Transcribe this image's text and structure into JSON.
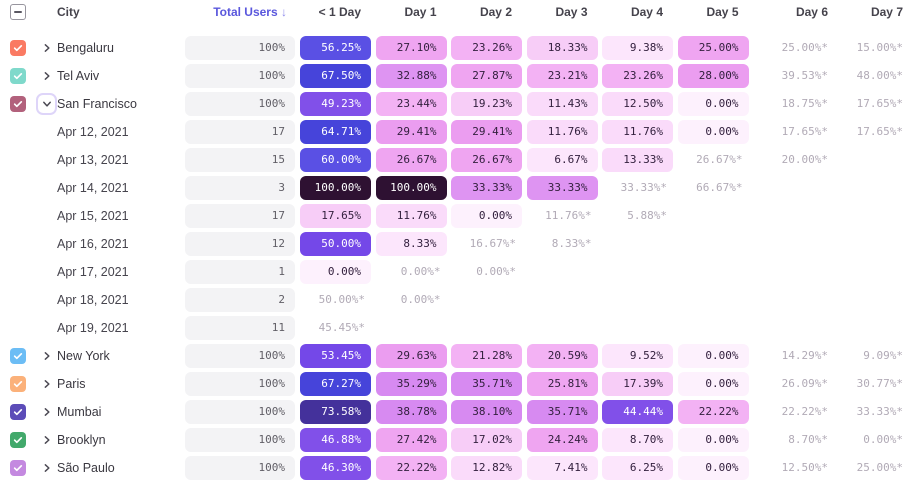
{
  "header": {
    "columns": [
      "City",
      "Total Users",
      "< 1 Day",
      "Day 1",
      "Day 2",
      "Day 3",
      "Day 4",
      "Day 5",
      "Day 6",
      "Day 7"
    ],
    "sort_arrow": "↓",
    "select_all_state": "indeterminate"
  },
  "color_scale": [
    {
      "min": 80,
      "bg": "#2e1132",
      "fg": "#ffffff"
    },
    {
      "min": 70,
      "bg": "#44319b",
      "fg": "#ffffff"
    },
    {
      "min": 63,
      "bg": "#4644da",
      "fg": "#ffffff"
    },
    {
      "min": 55,
      "bg": "#5a50e4",
      "fg": "#ffffff"
    },
    {
      "min": 50,
      "bg": "#7448e8",
      "fg": "#ffffff"
    },
    {
      "min": 43,
      "bg": "#8150e9",
      "fg": "#ffffff"
    },
    {
      "min": 34,
      "bg": "#d78af1",
      "fg": "#33203e"
    },
    {
      "min": 31,
      "bg": "#de94f2",
      "fg": "#33203e"
    },
    {
      "min": 28,
      "bg": "#eb9df0",
      "fg": "#33203e"
    },
    {
      "min": 24,
      "bg": "#efa5f1",
      "fg": "#33203e"
    },
    {
      "min": 20,
      "bg": "#f3b2f4",
      "fg": "#33203e"
    },
    {
      "min": 16,
      "bg": "#f7cdf7",
      "fg": "#33203e"
    },
    {
      "min": 11,
      "bg": "#fadbfa",
      "fg": "#33203e"
    },
    {
      "min": 5,
      "bg": "#fce6fc",
      "fg": "#33203e"
    },
    {
      "min": 0,
      "bg": "#fdf1fd",
      "fg": "#33203e"
    }
  ],
  "rows": [
    {
      "type": "city",
      "label": "Bengaluru",
      "checkbox_color": "#fa7a63",
      "expandable": true,
      "expanded": false,
      "total": "100%",
      "cells": [
        {
          "t": "56.25%",
          "v": 56.25,
          "k": "pill"
        },
        {
          "t": "27.10%",
          "v": 27.1,
          "k": "pill"
        },
        {
          "t": "23.26%",
          "v": 23.26,
          "k": "pill"
        },
        {
          "t": "18.33%",
          "v": 18.33,
          "k": "pill"
        },
        {
          "t": "9.38%",
          "v": 9.38,
          "k": "pill"
        },
        {
          "t": "25.00%",
          "v": 25.0,
          "k": "pill"
        },
        {
          "t": "25.00%*",
          "k": "plain"
        },
        {
          "t": "15.00%*",
          "k": "plain"
        }
      ]
    },
    {
      "type": "city",
      "label": "Tel Aviv",
      "checkbox_color": "#7fd9cb",
      "expandable": true,
      "expanded": false,
      "total": "100%",
      "cells": [
        {
          "t": "67.50%",
          "v": 67.5,
          "k": "pill"
        },
        {
          "t": "32.88%",
          "v": 32.88,
          "k": "pill"
        },
        {
          "t": "27.87%",
          "v": 27.87,
          "k": "pill"
        },
        {
          "t": "23.21%",
          "v": 23.21,
          "k": "pill"
        },
        {
          "t": "23.26%",
          "v": 23.26,
          "k": "pill"
        },
        {
          "t": "28.00%",
          "v": 28.0,
          "k": "pill"
        },
        {
          "t": "39.53%*",
          "k": "plain"
        },
        {
          "t": "48.00%*",
          "k": "plain"
        }
      ]
    },
    {
      "type": "city",
      "label": "San Francisco",
      "checkbox_color": "#b2617c",
      "expandable": true,
      "expanded": true,
      "total": "100%",
      "cells": [
        {
          "t": "49.23%",
          "v": 49.23,
          "k": "pill"
        },
        {
          "t": "23.44%",
          "v": 23.44,
          "k": "pill"
        },
        {
          "t": "19.23%",
          "v": 19.23,
          "k": "pill"
        },
        {
          "t": "11.43%",
          "v": 11.43,
          "k": "pill"
        },
        {
          "t": "12.50%",
          "v": 12.5,
          "k": "pill"
        },
        {
          "t": "0.00%",
          "v": 0,
          "k": "pill"
        },
        {
          "t": "18.75%*",
          "k": "plain"
        },
        {
          "t": "17.65%*",
          "k": "plain"
        }
      ]
    },
    {
      "type": "date",
      "label": "Apr 12, 2021",
      "total": "17",
      "cells": [
        {
          "t": "64.71%",
          "v": 64.71,
          "k": "pill"
        },
        {
          "t": "29.41%",
          "v": 29.41,
          "k": "pill"
        },
        {
          "t": "29.41%",
          "v": 29.41,
          "k": "pill"
        },
        {
          "t": "11.76%",
          "v": 11.76,
          "k": "pill"
        },
        {
          "t": "11.76%",
          "v": 11.76,
          "k": "pill"
        },
        {
          "t": "0.00%",
          "v": 0,
          "k": "pill"
        },
        {
          "t": "17.65%*",
          "k": "plain"
        },
        {
          "t": "17.65%*",
          "k": "plain"
        }
      ]
    },
    {
      "type": "date",
      "label": "Apr 13, 2021",
      "total": "15",
      "cells": [
        {
          "t": "60.00%",
          "v": 60.0,
          "k": "pill"
        },
        {
          "t": "26.67%",
          "v": 26.67,
          "k": "pill"
        },
        {
          "t": "26.67%",
          "v": 26.67,
          "k": "pill"
        },
        {
          "t": "6.67%",
          "v": 6.67,
          "k": "pill"
        },
        {
          "t": "13.33%",
          "v": 13.33,
          "k": "pill"
        },
        {
          "t": "26.67%*",
          "k": "plain"
        },
        {
          "t": "20.00%*",
          "k": "plain"
        },
        null
      ]
    },
    {
      "type": "date",
      "label": "Apr 14, 2021",
      "total": "3",
      "cells": [
        {
          "t": "100.00%",
          "v": 100,
          "k": "pill"
        },
        {
          "t": "100.00%",
          "v": 100,
          "k": "pill"
        },
        {
          "t": "33.33%",
          "v": 33.33,
          "k": "pill"
        },
        {
          "t": "33.33%",
          "v": 33.33,
          "k": "pill"
        },
        {
          "t": "33.33%*",
          "k": "plain"
        },
        {
          "t": "66.67%*",
          "k": "plain"
        },
        null,
        null
      ]
    },
    {
      "type": "date",
      "label": "Apr 15, 2021",
      "total": "17",
      "cells": [
        {
          "t": "17.65%",
          "v": 17.65,
          "k": "pill"
        },
        {
          "t": "11.76%",
          "v": 11.76,
          "k": "pill"
        },
        {
          "t": "0.00%",
          "v": 0,
          "k": "pill"
        },
        {
          "t": "11.76%*",
          "k": "plain"
        },
        {
          "t": "5.88%*",
          "k": "plain"
        },
        null,
        null,
        null
      ]
    },
    {
      "type": "date",
      "label": "Apr 16, 2021",
      "total": "12",
      "cells": [
        {
          "t": "50.00%",
          "v": 50.0,
          "k": "pill"
        },
        {
          "t": "8.33%",
          "v": 8.33,
          "k": "pill"
        },
        {
          "t": "16.67%*",
          "k": "plain"
        },
        {
          "t": "8.33%*",
          "k": "plain"
        },
        null,
        null,
        null,
        null
      ]
    },
    {
      "type": "date",
      "label": "Apr 17, 2021",
      "total": "1",
      "cells": [
        {
          "t": "0.00%",
          "v": 0,
          "k": "pill"
        },
        {
          "t": "0.00%*",
          "k": "plain"
        },
        {
          "t": "0.00%*",
          "k": "plain"
        },
        null,
        null,
        null,
        null,
        null
      ]
    },
    {
      "type": "date",
      "label": "Apr 18, 2021",
      "total": "2",
      "cells": [
        {
          "t": "50.00%*",
          "k": "plain"
        },
        {
          "t": "0.00%*",
          "k": "plain"
        },
        null,
        null,
        null,
        null,
        null,
        null
      ]
    },
    {
      "type": "date",
      "label": "Apr 19, 2021",
      "total": "11",
      "cells": [
        {
          "t": "45.45%*",
          "k": "plain"
        },
        null,
        null,
        null,
        null,
        null,
        null,
        null
      ]
    },
    {
      "type": "city",
      "label": "New York",
      "checkbox_color": "#6cbdf5",
      "expandable": true,
      "expanded": false,
      "total": "100%",
      "cells": [
        {
          "t": "53.45%",
          "v": 53.45,
          "k": "pill"
        },
        {
          "t": "29.63%",
          "v": 29.63,
          "k": "pill"
        },
        {
          "t": "21.28%",
          "v": 21.28,
          "k": "pill"
        },
        {
          "t": "20.59%",
          "v": 20.59,
          "k": "pill"
        },
        {
          "t": "9.52%",
          "v": 9.52,
          "k": "pill"
        },
        {
          "t": "0.00%",
          "v": 0,
          "k": "pill"
        },
        {
          "t": "14.29%*",
          "k": "plain"
        },
        {
          "t": "9.09%*",
          "k": "plain"
        }
      ]
    },
    {
      "type": "city",
      "label": "Paris",
      "checkbox_color": "#fbb17a",
      "expandable": true,
      "expanded": false,
      "total": "100%",
      "cells": [
        {
          "t": "67.27%",
          "v": 67.27,
          "k": "pill"
        },
        {
          "t": "35.29%",
          "v": 35.29,
          "k": "pill"
        },
        {
          "t": "35.71%",
          "v": 35.71,
          "k": "pill"
        },
        {
          "t": "25.81%",
          "v": 25.81,
          "k": "pill"
        },
        {
          "t": "17.39%",
          "v": 17.39,
          "k": "pill"
        },
        {
          "t": "0.00%",
          "v": 0,
          "k": "pill"
        },
        {
          "t": "26.09%*",
          "k": "plain"
        },
        {
          "t": "30.77%*",
          "k": "plain"
        }
      ]
    },
    {
      "type": "city",
      "label": "Mumbai",
      "checkbox_color": "#5c4cb8",
      "expandable": true,
      "expanded": false,
      "total": "100%",
      "cells": [
        {
          "t": "73.58%",
          "v": 73.58,
          "k": "pill"
        },
        {
          "t": "38.78%",
          "v": 38.78,
          "k": "pill"
        },
        {
          "t": "38.10%",
          "v": 38.1,
          "k": "pill"
        },
        {
          "t": "35.71%",
          "v": 35.71,
          "k": "pill"
        },
        {
          "t": "44.44%",
          "v": 44.44,
          "k": "pill"
        },
        {
          "t": "22.22%",
          "v": 22.22,
          "k": "pill"
        },
        {
          "t": "22.22%*",
          "k": "plain"
        },
        {
          "t": "33.33%*",
          "k": "plain"
        }
      ]
    },
    {
      "type": "city",
      "label": "Brooklyn",
      "checkbox_color": "#42a96b",
      "expandable": true,
      "expanded": false,
      "total": "100%",
      "cells": [
        {
          "t": "46.88%",
          "v": 46.88,
          "k": "pill"
        },
        {
          "t": "27.42%",
          "v": 27.42,
          "k": "pill"
        },
        {
          "t": "17.02%",
          "v": 17.02,
          "k": "pill"
        },
        {
          "t": "24.24%",
          "v": 24.24,
          "k": "pill"
        },
        {
          "t": "8.70%",
          "v": 8.7,
          "k": "pill"
        },
        {
          "t": "0.00%",
          "v": 0,
          "k": "pill"
        },
        {
          "t": "8.70%*",
          "k": "plain"
        },
        {
          "t": "0.00%*",
          "k": "plain"
        }
      ]
    },
    {
      "type": "city",
      "label": "São Paulo",
      "checkbox_color": "#c489e0",
      "expandable": true,
      "expanded": false,
      "total": "100%",
      "cells": [
        {
          "t": "46.30%",
          "v": 46.3,
          "k": "pill"
        },
        {
          "t": "22.22%",
          "v": 22.22,
          "k": "pill"
        },
        {
          "t": "12.82%",
          "v": 12.82,
          "k": "pill"
        },
        {
          "t": "7.41%",
          "v": 7.41,
          "k": "pill"
        },
        {
          "t": "6.25%",
          "v": 6.25,
          "k": "pill"
        },
        {
          "t": "0.00%",
          "v": 0,
          "k": "pill"
        },
        {
          "t": "12.50%*",
          "k": "plain"
        },
        {
          "t": "25.00%*",
          "k": "plain"
        }
      ]
    }
  ]
}
